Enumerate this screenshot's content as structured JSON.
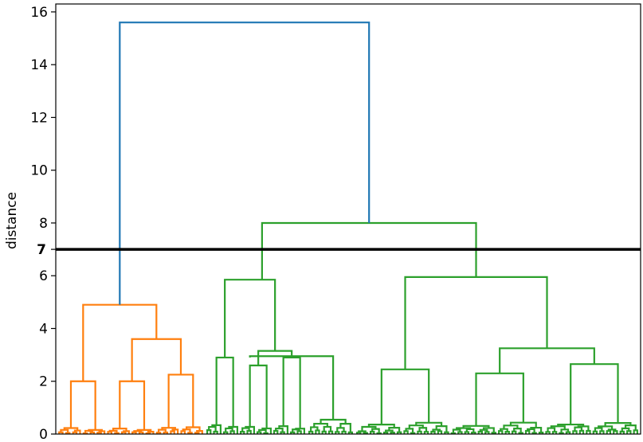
{
  "chart_data": {
    "type": "dendrogram",
    "ylabel": "distance",
    "ylim": [
      0,
      16.3
    ],
    "yticks": [
      "0",
      "2",
      "4",
      "6",
      "8",
      "10",
      "12",
      "14",
      "16"
    ],
    "grid": false,
    "colors": {
      "orange": "#ff7f0e",
      "green": "#2ca02c",
      "blue": "#1f77b4",
      "cut": "#000000"
    },
    "cut_line": {
      "y": 7,
      "label": "7"
    },
    "root_merge": {
      "height": 15.6,
      "left_height": 4.9,
      "right_height": 8.0,
      "color": "blue"
    },
    "clusters": [
      {
        "name": "",
        "color": "orange",
        "height": 4.9,
        "children": [
          {
            "height": 2.0,
            "children": [
              {
                "height": 1.2
              },
              {
                "height": 0.9
              }
            ]
          },
          {
            "height": 3.6,
            "children": [
              {
                "height": 2.0,
                "children": [
                  {
                    "height": 1.3
                  },
                  {
                    "height": 1.0
                  }
                ]
              },
              {
                "height": 2.25,
                "children": [
                  {
                    "height": 1.5
                  },
                  {
                    "height": 1.7
                  }
                ]
              }
            ]
          }
        ]
      },
      {
        "name": "",
        "color": "green",
        "height": 5.85,
        "children": [
          {
            "height": 2.9,
            "children": [
              {
                "height": 2.0
              },
              {
                "height": 1.6
              }
            ]
          },
          {
            "height": 3.15,
            "children": [
              {
                "height": 2.6,
                "children": [
                  {
                    "height": 1.8
                  },
                  {
                    "height": 1.4
                  }
                ]
              },
              {
                "height": 2.9,
                "children": [
                  {
                    "height": 2.1
                  },
                  {
                    "height": 1.5
                  }
                ]
              }
            ]
          }
        ]
      },
      {
        "name": "",
        "color": "green",
        "height": 5.95,
        "children": [
          {
            "height": 2.45,
            "children": [
              {
                "height": 1.6
              },
              {
                "height": 1.9
              }
            ]
          },
          {
            "height": 3.25,
            "children": [
              {
                "height": 2.3,
                "children": [
                  {
                    "height": 1.4
                  },
                  {
                    "height": 1.7
                  }
                ]
              },
              {
                "height": 2.65,
                "children": [
                  {
                    "height": 1.9
                  },
                  {
                    "height": 2.0
                  }
                ]
              }
            ]
          }
        ]
      }
    ]
  }
}
